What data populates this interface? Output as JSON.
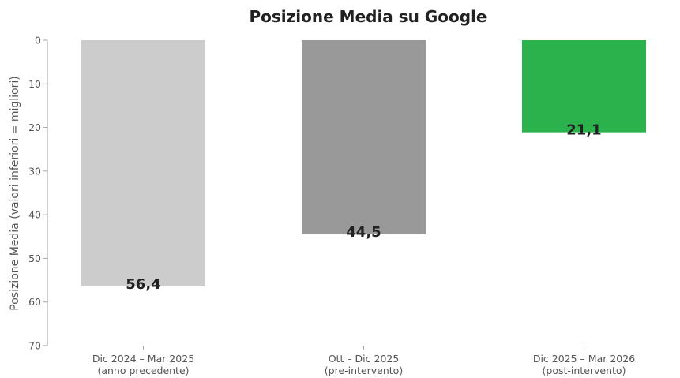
{
  "chart_data": {
    "type": "bar",
    "title": "Posizione Media su Google",
    "xlabel": "",
    "ylabel": "Posizione Media (valori inferiori = migliori)",
    "ylim": [
      0,
      70
    ],
    "y_inverted": true,
    "yticks": [
      0,
      10,
      20,
      30,
      40,
      50,
      60,
      70
    ],
    "grid": false,
    "categories": [
      [
        "Dic 2024 – Mar 2025",
        "(anno precedente)"
      ],
      [
        "Ott – Dic 2025",
        "(pre-intervento)"
      ],
      [
        "Dic 2025 – Mar 2026",
        "(post-intervento)"
      ]
    ],
    "values": [
      56.4,
      44.5,
      21.1
    ],
    "value_labels": [
      "56,4",
      "44,5",
      "21,1"
    ],
    "colors": [
      "#cccccc",
      "#999999",
      "#2bb24c"
    ]
  }
}
